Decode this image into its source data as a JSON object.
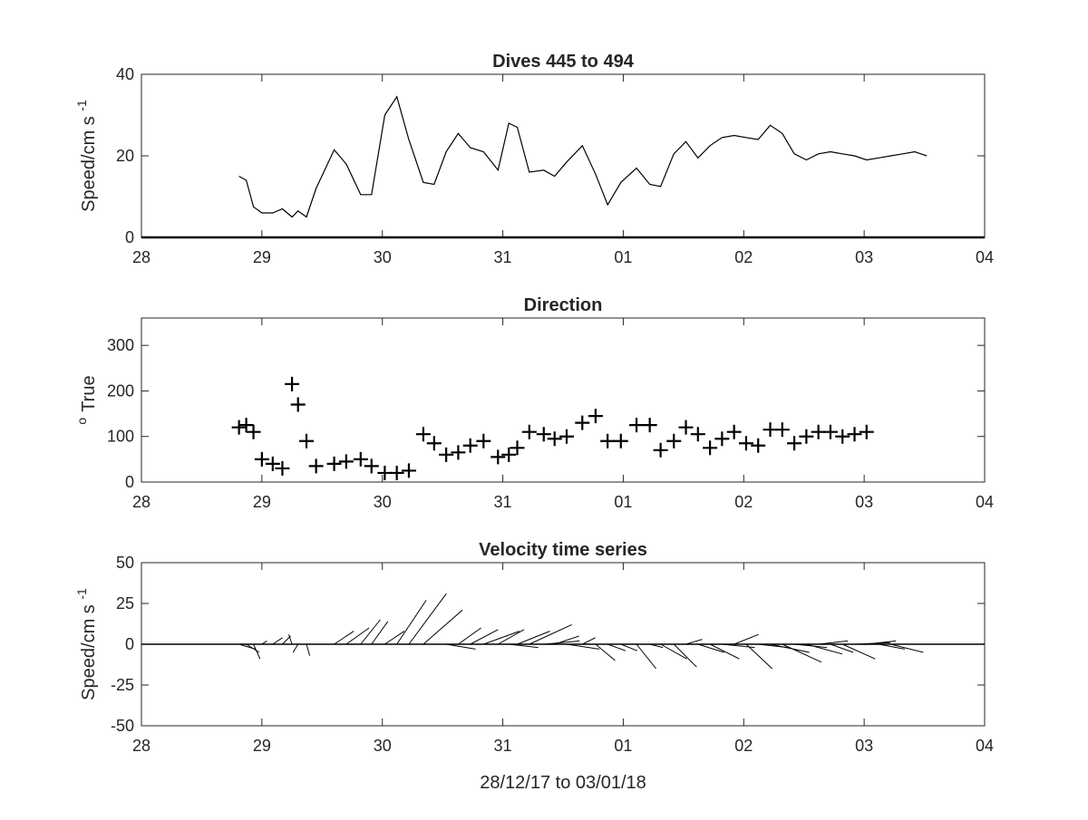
{
  "xlabel": "28/12/17 to 03/01/18",
  "chart_data": [
    {
      "type": "line",
      "title": "Dives 445 to 494",
      "ylabel_main": "Speed/cm s",
      "ylabel_sup": "-1",
      "xlim": [
        0,
        7
      ],
      "ylim": [
        0,
        40
      ],
      "yticks": [
        0,
        20,
        40
      ],
      "xtick_labels": [
        "28",
        "29",
        "30",
        "31",
        "01",
        "02",
        "03",
        "04"
      ],
      "x": [
        0.81,
        0.87,
        0.93,
        1.0,
        1.09,
        1.17,
        1.25,
        1.3,
        1.37,
        1.45,
        1.6,
        1.7,
        1.82,
        1.91,
        2.02,
        2.12,
        2.22,
        2.34,
        2.43,
        2.53,
        2.63,
        2.73,
        2.84,
        2.96,
        3.05,
        3.12,
        3.22,
        3.34,
        3.43,
        3.53,
        3.66,
        3.77,
        3.87,
        3.98,
        4.11,
        4.22,
        4.31,
        4.42,
        4.52,
        4.62,
        4.72,
        4.82,
        4.92,
        5.02,
        5.12,
        5.22,
        5.32,
        5.42,
        5.52,
        5.62,
        5.72,
        5.82,
        5.92,
        6.02,
        6.12,
        6.22,
        6.32,
        6.42,
        6.52
      ],
      "y": [
        15,
        14,
        7.5,
        6,
        6,
        7,
        5,
        6.5,
        5,
        12,
        21.5,
        18,
        10.5,
        10.5,
        30,
        34.5,
        24,
        13.5,
        13,
        21,
        25.5,
        22,
        21,
        16.5,
        28,
        27,
        16,
        16.5,
        15,
        18.5,
        22.5,
        15.5,
        8,
        13.5,
        17,
        13,
        12.5,
        20.5,
        23.5,
        19.5,
        22.5,
        24.5,
        25,
        24.5,
        24,
        27.5,
        25.5,
        20.5,
        19,
        20.5,
        21,
        20.5,
        20,
        19,
        19.5,
        20,
        20.5,
        21,
        20
      ]
    },
    {
      "type": "scatter",
      "title": "Direction",
      "ylabel_main": "True",
      "ylabel_sup": "o",
      "xlim": [
        0,
        7
      ],
      "ylim": [
        0,
        360
      ],
      "yticks": [
        0,
        100,
        200,
        300
      ],
      "xtick_labels": [
        "28",
        "29",
        "30",
        "31",
        "01",
        "02",
        "03",
        "04"
      ],
      "x": [
        0.81,
        0.87,
        0.93,
        1.0,
        1.09,
        1.17,
        1.25,
        1.3,
        1.37,
        1.45,
        1.6,
        1.7,
        1.82,
        1.91,
        2.02,
        2.12,
        2.22,
        2.34,
        2.43,
        2.53,
        2.63,
        2.73,
        2.84,
        2.96,
        3.05,
        3.12,
        3.22,
        3.34,
        3.43,
        3.53,
        3.66,
        3.77,
        3.87,
        3.98,
        4.11,
        4.22,
        4.31,
        4.42,
        4.52,
        4.62,
        4.72,
        4.82,
        4.92,
        5.02,
        5.12,
        5.22,
        5.32,
        5.42,
        5.52,
        5.62,
        5.72,
        5.82,
        5.92,
        6.02
      ],
      "y": [
        120,
        125,
        110,
        50,
        40,
        30,
        215,
        170,
        90,
        35,
        40,
        45,
        50,
        35,
        20,
        20,
        25,
        105,
        85,
        60,
        65,
        80,
        90,
        55,
        60,
        75,
        110,
        105,
        95,
        100,
        130,
        145,
        90,
        90,
        125,
        125,
        70,
        90,
        120,
        105,
        75,
        95,
        110,
        85,
        80,
        115,
        115,
        85,
        100,
        110,
        110,
        100,
        105,
        110
      ]
    },
    {
      "type": "vector",
      "title": "Velocity time series",
      "ylabel_main": "Speed/cm s",
      "ylabel_sup": "-1",
      "xlim": [
        0,
        7
      ],
      "ylim": [
        -50,
        50
      ],
      "yticks": [
        -50,
        -25,
        0,
        25,
        50
      ],
      "xtick_labels": [
        "28",
        "29",
        "30",
        "31",
        "01",
        "02",
        "03",
        "04"
      ],
      "x": [
        0.81,
        0.87,
        0.93,
        1.0,
        1.09,
        1.17,
        1.25,
        1.3,
        1.37,
        1.6,
        1.7,
        1.82,
        1.91,
        2.02,
        2.12,
        2.22,
        2.34,
        2.53,
        2.63,
        2.73,
        2.84,
        2.96,
        3.05,
        3.12,
        3.22,
        3.34,
        3.43,
        3.53,
        3.66,
        3.77,
        3.87,
        3.98,
        4.11,
        4.22,
        4.31,
        4.42,
        4.52,
        4.62,
        4.72,
        4.82,
        4.92,
        5.02,
        5.12,
        5.22,
        5.32,
        5.42,
        5.52,
        5.62,
        5.72,
        5.82,
        5.92,
        6.02,
        6.12,
        6.22
      ],
      "u": [
        10,
        8,
        4,
        3,
        6,
        5,
        -2,
        -3,
        2,
        12,
        14,
        12,
        10,
        12,
        18,
        23,
        24,
        18,
        14,
        17,
        22,
        16,
        18,
        20,
        26,
        22,
        15,
        20,
        8,
        12,
        11,
        10,
        12,
        8,
        16,
        14,
        10,
        16,
        18,
        20,
        15,
        16,
        18,
        24,
        24,
        20,
        22,
        18,
        14,
        20,
        22,
        18,
        16,
        20
      ],
      "v": [
        -3,
        -5,
        -9,
        2,
        4,
        5,
        6,
        -5,
        -7,
        8,
        10,
        15,
        14,
        8,
        27,
        31,
        21,
        -3,
        10,
        9,
        8,
        9,
        -2,
        8,
        12,
        2,
        5,
        -3,
        4,
        -10,
        -4,
        -4,
        -15,
        -2,
        -9,
        -14,
        3,
        -5,
        -9,
        -2,
        6,
        -15,
        -2,
        -5,
        -11,
        -2,
        -6,
        2,
        -5,
        -9,
        1,
        2,
        -3,
        -5
      ]
    }
  ]
}
